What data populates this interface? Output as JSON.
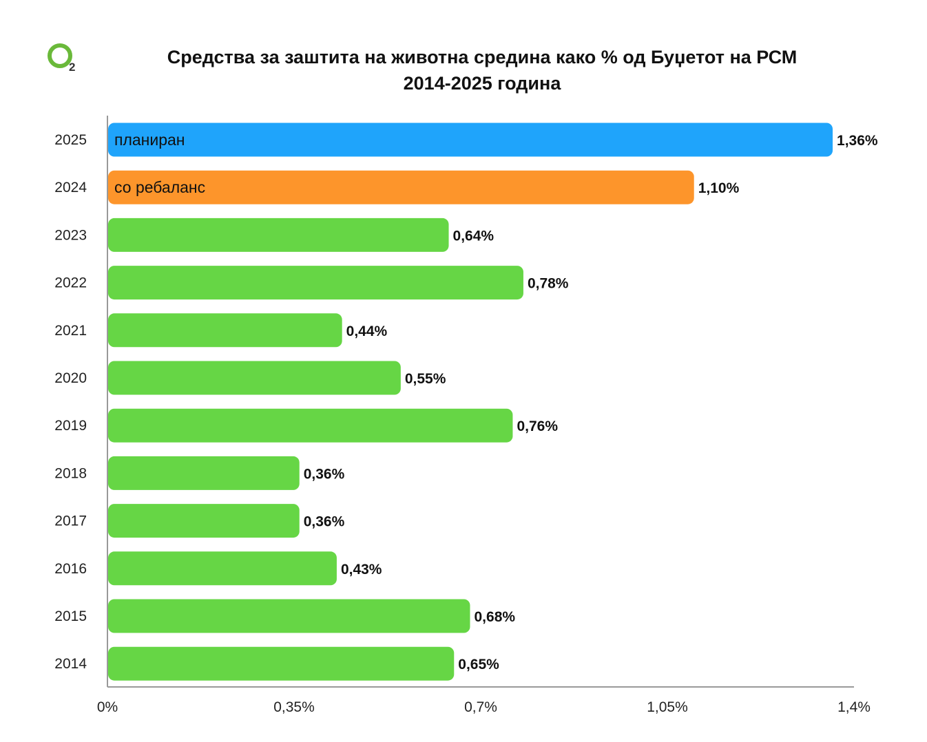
{
  "title_line1": "Средства за заштита на животна средина како % од Буџетот на РСМ",
  "title_line2": "2014-2025 година",
  "logo": {
    "icon": "o2-logo",
    "subscript": "2",
    "color": "#6ab93a"
  },
  "chart_data": {
    "type": "bar",
    "orientation": "horizontal",
    "categories": [
      "2025",
      "2024",
      "2023",
      "2022",
      "2021",
      "2020",
      "2019",
      "2018",
      "2017",
      "2016",
      "2015",
      "2014"
    ],
    "values": [
      1.36,
      1.1,
      0.64,
      0.78,
      0.44,
      0.55,
      0.76,
      0.36,
      0.36,
      0.43,
      0.68,
      0.65
    ],
    "value_labels": [
      "1,36%",
      "1,10%",
      "0,64%",
      "0,78%",
      "0,44%",
      "0,55%",
      "0,76%",
      "0,36%",
      "0,36%",
      "0,43%",
      "0,68%",
      "0,65%"
    ],
    "inner_labels": [
      "планиран",
      "со ребаланс",
      "",
      "",
      "",
      "",
      "",
      "",
      "",
      "",
      "",
      ""
    ],
    "colors": [
      "#1fa4fb",
      "#fd952b",
      "#66d645",
      "#66d645",
      "#66d645",
      "#66d645",
      "#66d645",
      "#66d645",
      "#66d645",
      "#66d645",
      "#66d645",
      "#66d645"
    ],
    "xlim": [
      0,
      1.4
    ],
    "xticks": [
      0,
      0.35,
      0.7,
      1.05,
      1.4
    ],
    "xtick_labels": [
      "0%",
      "0,35%",
      "0,7%",
      "1,05%",
      "1,4%"
    ],
    "grid": false,
    "title": "Средства за заштита на животна средина како % од Буџетот на РСМ 2014-2025 година"
  }
}
